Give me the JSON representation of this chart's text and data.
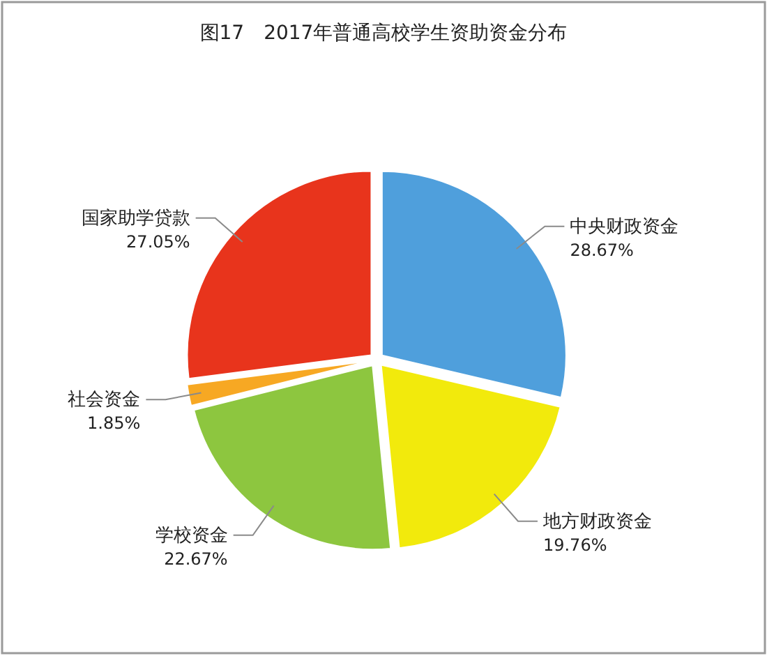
{
  "chart_data": {
    "type": "pie",
    "title": "图17　2017年普通高校学生资助资金分布",
    "categories": [
      "中央财政资金",
      "地方财政资金",
      "学校资金",
      "社会资金",
      "国家助学贷款"
    ],
    "values": [
      28.67,
      19.76,
      22.67,
      1.85,
      27.05
    ],
    "colors": [
      "#4f9fdc",
      "#f2ea0c",
      "#8dc63f",
      "#f7a823",
      "#e8341c"
    ],
    "value_labels": [
      "28.67%",
      "19.76%",
      "22.67%",
      "1.85%",
      "27.05%"
    ]
  }
}
